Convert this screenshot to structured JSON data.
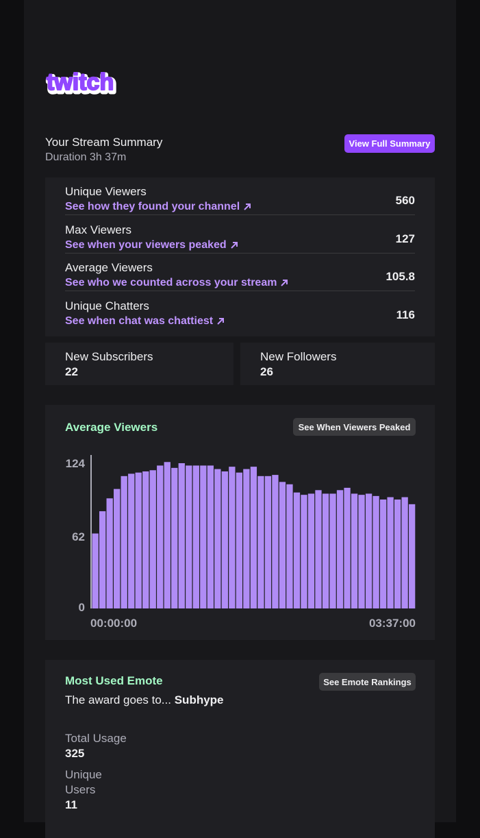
{
  "brand": {
    "logo_text": "twitch",
    "accent": "#9147ff"
  },
  "summary": {
    "title": "Your Stream Summary",
    "duration": "Duration 3h 37m",
    "view_full_label": "View Full Summary"
  },
  "stats": [
    {
      "label": "Unique Viewers",
      "link": "See how they found your channel",
      "value": "560"
    },
    {
      "label": "Max Viewers",
      "link": "See when your viewers peaked",
      "value": "127"
    },
    {
      "label": "Average Viewers",
      "link": "See who we counted across your stream",
      "value": "105.8"
    },
    {
      "label": "Unique Chatters",
      "link": "See when chat was chattiest",
      "value": "116"
    }
  ],
  "new_subscribers": {
    "label": "New Subscribers",
    "value": "22"
  },
  "new_followers": {
    "label": "New Followers",
    "value": "26"
  },
  "avg_viewers_section": {
    "title": "Average Viewers",
    "button_label": "See When Viewers Peaked"
  },
  "chart_data": {
    "type": "bar",
    "title": "Average Viewers",
    "x_start_label": "00:00:00",
    "x_end_label": "03:37:00",
    "y_ticks": [
      "124",
      "62",
      "0"
    ],
    "ylim": [
      0,
      124
    ],
    "bar_color": "#b08cf5",
    "values": [
      64,
      83,
      94,
      102,
      113,
      115,
      116,
      117,
      118,
      122,
      125,
      120,
      124,
      122,
      122,
      122,
      122,
      119,
      117,
      121,
      116,
      119,
      121,
      113,
      113,
      114,
      108,
      106,
      99,
      97,
      98,
      101,
      98,
      98,
      101,
      103,
      98,
      97,
      98,
      96,
      93,
      95,
      93,
      95,
      89
    ]
  },
  "emote": {
    "title": "Most Used Emote",
    "button_label": "See Emote Rankings",
    "award_prefix": "The award goes to...",
    "award_name": "Subhype",
    "total_usage_label": "Total Usage",
    "total_usage_value": "325",
    "unique_users_label_1": "Unique",
    "unique_users_label_2": "Users",
    "unique_users_value": "11"
  }
}
